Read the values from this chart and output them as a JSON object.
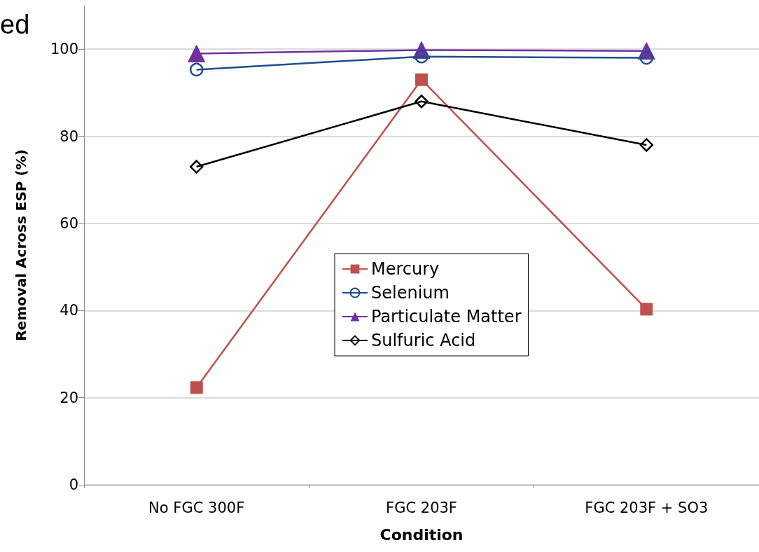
{
  "chart_data": {
    "type": "line",
    "xlabel": "Condition",
    "ylabel": "Removal Across ESP (%)",
    "categories": [
      "No FGC 300F",
      "FGC 203F",
      "FGC 203F + SO3"
    ],
    "ylim": [
      0,
      110
    ],
    "yticks": [
      0,
      20,
      40,
      60,
      80,
      100
    ],
    "grid": "y",
    "legend": "center",
    "annotations": [
      "ed"
    ],
    "series": [
      {
        "name": "Mercury",
        "color": "#c0504d",
        "marker": "square",
        "values": [
          22.3,
          93,
          40.3
        ]
      },
      {
        "name": "Selenium",
        "color": "#1f4e8c",
        "marker": "circle",
        "values": [
          95.3,
          98.3,
          98
        ]
      },
      {
        "name": "Particulate Matter",
        "color": "#7030a0",
        "marker": "triangle",
        "values": [
          99,
          99.8,
          99.6
        ]
      },
      {
        "name": "Sulfuric Acid",
        "color": "#000000",
        "marker": "diamond",
        "values": [
          73,
          88,
          78
        ]
      }
    ]
  }
}
